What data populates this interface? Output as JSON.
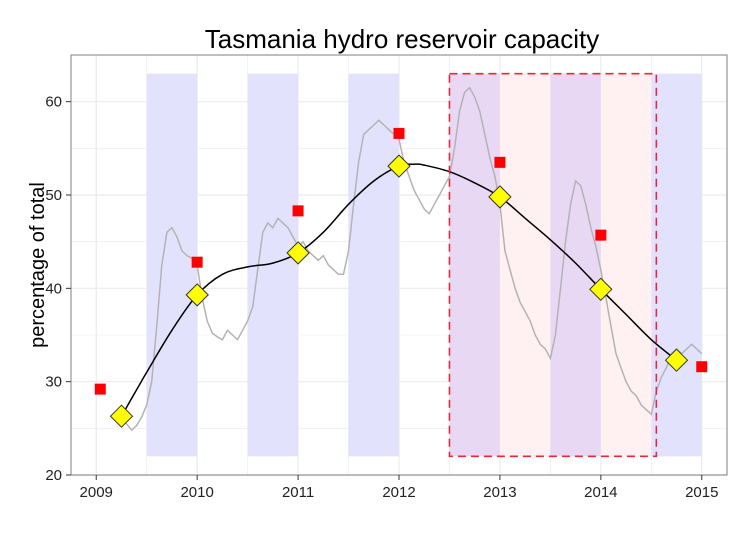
{
  "chart_data": {
    "type": "line",
    "title": "Tasmania hydro reservoir capacity",
    "xlabel": "",
    "ylabel": "percentage of total",
    "xlim": [
      2008.75,
      2015.25
    ],
    "ylim": [
      20,
      65
    ],
    "x_ticks": [
      2009,
      2010,
      2011,
      2012,
      2013,
      2014,
      2015
    ],
    "y_ticks": [
      20,
      30,
      40,
      50,
      60
    ],
    "grid": true,
    "legend": "none",
    "colors": {
      "raw_line": "#b3b3b3",
      "smooth_line": "#000000",
      "marker_fill": "#ffff00",
      "marker_stroke": "#333333",
      "square": "#ff0000",
      "shade_blue": "#e2e2fd",
      "shade_pink": "#fff0f2",
      "overlap": "#e8d8f4",
      "highlight_box": "#e8273d",
      "panel_border": "#7f7f7f",
      "gridline": "#ebebeb"
    },
    "shaded_bands": [
      {
        "x0": 2009.5,
        "x1": 2010.0,
        "y0": 22,
        "y1": 63
      },
      {
        "x0": 2010.5,
        "x1": 2011.0,
        "y0": 22,
        "y1": 63
      },
      {
        "x0": 2011.5,
        "x1": 2012.0,
        "y0": 22,
        "y1": 63
      },
      {
        "x0": 2012.5,
        "x1": 2013.0,
        "y0": 22,
        "y1": 63
      },
      {
        "x0": 2013.5,
        "x1": 2014.0,
        "y0": 22,
        "y1": 63
      },
      {
        "x0": 2014.5,
        "x1": 2015.0,
        "y0": 22,
        "y1": 63
      }
    ],
    "highlight_region": {
      "x0": 2012.5,
      "x1": 2014.55,
      "y0": 22,
      "y1": 63
    },
    "series": [
      {
        "kind": "raw",
        "x": [
          2009.25,
          2009.3,
          2009.35,
          2009.4,
          2009.45,
          2009.5,
          2009.55,
          2009.6,
          2009.65,
          2009.7,
          2009.75,
          2009.8,
          2009.85,
          2009.9,
          2009.95,
          2010.0,
          2010.05,
          2010.1,
          2010.15,
          2010.2,
          2010.25,
          2010.3,
          2010.35,
          2010.4,
          2010.45,
          2010.5,
          2010.55,
          2010.6,
          2010.65,
          2010.7,
          2010.75,
          2010.8,
          2010.85,
          2010.9,
          2010.95,
          2011.0,
          2011.05,
          2011.1,
          2011.15,
          2011.2,
          2011.25,
          2011.3,
          2011.35,
          2011.4,
          2011.45,
          2011.5,
          2011.55,
          2011.6,
          2011.65,
          2011.7,
          2011.75,
          2011.8,
          2011.85,
          2011.9,
          2011.95,
          2012.0,
          2012.05,
          2012.1,
          2012.15,
          2012.2,
          2012.25,
          2012.3,
          2012.35,
          2012.4,
          2012.45,
          2012.5,
          2012.55,
          2012.6,
          2012.65,
          2012.7,
          2012.75,
          2012.8,
          2012.85,
          2012.9,
          2012.95,
          2013.0,
          2013.05,
          2013.1,
          2013.15,
          2013.2,
          2013.25,
          2013.3,
          2013.35,
          2013.4,
          2013.45,
          2013.5,
          2013.55,
          2013.6,
          2013.65,
          2013.7,
          2013.75,
          2013.8,
          2013.85,
          2013.9,
          2013.95,
          2014.0,
          2014.05,
          2014.1,
          2014.15,
          2014.2,
          2014.25,
          2014.3,
          2014.35,
          2014.4,
          2014.45,
          2014.5,
          2014.55,
          2014.6,
          2014.65,
          2014.7,
          2014.75,
          2014.8,
          2014.85,
          2014.9,
          2014.95,
          2015.0
        ],
        "values": [
          26.0,
          25.5,
          24.8,
          25.3,
          26.2,
          27.5,
          30.0,
          36.0,
          42.5,
          46.0,
          46.5,
          45.5,
          44.0,
          43.5,
          43.2,
          42.5,
          39.0,
          36.5,
          35.2,
          34.8,
          34.5,
          35.5,
          35.0,
          34.5,
          35.5,
          36.5,
          38.0,
          42.0,
          46.0,
          47.0,
          46.5,
          47.5,
          47.0,
          46.5,
          45.5,
          44.5,
          45.0,
          44.0,
          43.5,
          43.0,
          43.5,
          42.5,
          42.0,
          41.5,
          41.5,
          44.0,
          49.0,
          53.5,
          56.5,
          57.0,
          57.5,
          58.0,
          57.5,
          57.0,
          56.5,
          56.0,
          53.5,
          52.0,
          50.5,
          49.5,
          48.5,
          48.0,
          49.0,
          50.0,
          51.0,
          52.0,
          55.0,
          59.0,
          61.0,
          61.5,
          60.5,
          59.0,
          56.5,
          54.0,
          52.0,
          49.0,
          44.0,
          42.0,
          40.0,
          38.5,
          37.5,
          36.5,
          35.0,
          34.0,
          33.5,
          32.5,
          35.0,
          40.0,
          45.0,
          49.0,
          51.5,
          51.0,
          49.0,
          46.5,
          44.5,
          42.0,
          39.0,
          36.0,
          33.0,
          31.5,
          30.0,
          29.0,
          28.5,
          27.5,
          27.0,
          26.5,
          29.0,
          30.5,
          31.5,
          33.0,
          33.5,
          33.0,
          33.5,
          34.0,
          33.5,
          33.0
        ]
      },
      {
        "kind": "smooth",
        "x": [
          2009.25,
          2009.5,
          2009.75,
          2010.0,
          2010.25,
          2010.5,
          2010.75,
          2011.0,
          2011.25,
          2011.5,
          2011.75,
          2012.0,
          2012.15,
          2012.25,
          2012.5,
          2012.75,
          2013.0,
          2013.25,
          2013.5,
          2013.75,
          2014.0,
          2014.25,
          2014.5,
          2014.75
        ],
        "values": [
          26.3,
          31.0,
          35.5,
          39.3,
          41.5,
          42.3,
          42.7,
          43.8,
          46.0,
          49.0,
          51.5,
          53.1,
          53.3,
          53.2,
          52.5,
          51.3,
          49.8,
          47.5,
          45.2,
          42.7,
          39.9,
          37.2,
          34.5,
          32.3
        ]
      },
      {
        "kind": "diamonds",
        "x": [
          2009.25,
          2010.0,
          2011.0,
          2012.0,
          2013.0,
          2014.0,
          2014.75
        ],
        "values": [
          26.3,
          39.3,
          43.8,
          53.1,
          49.8,
          39.9,
          32.3
        ]
      },
      {
        "kind": "squares",
        "x": [
          2009.04,
          2010.0,
          2011.0,
          2012.0,
          2013.0,
          2014.0,
          2015.0
        ],
        "values": [
          29.2,
          42.8,
          48.3,
          56.6,
          53.5,
          45.7,
          31.6
        ]
      }
    ]
  }
}
